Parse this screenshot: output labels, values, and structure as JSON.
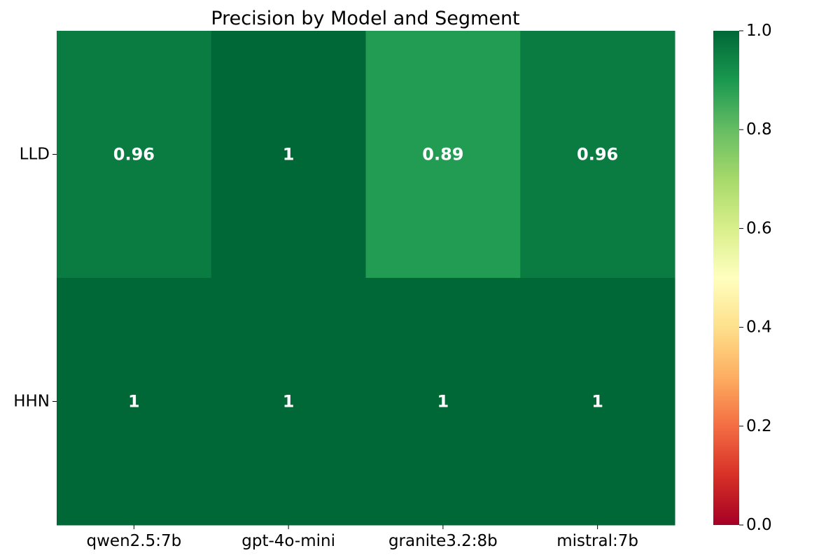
{
  "chart_data": {
    "type": "heatmap",
    "title": "Precision by Model and Segment",
    "xlabel": "",
    "ylabel": "",
    "x_categories": [
      "qwen2.5:7b",
      "gpt-4o-mini",
      "granite3.2:8b",
      "mistral:7b"
    ],
    "y_categories": [
      "LLD",
      "HHN"
    ],
    "values": [
      [
        0.96,
        1.0,
        0.89,
        0.96
      ],
      [
        1.0,
        1.0,
        1.0,
        1.0
      ]
    ],
    "cell_labels": [
      [
        "0.96",
        "1",
        "0.89",
        "0.96"
      ],
      [
        "1",
        "1",
        "1",
        "1"
      ]
    ],
    "colormap": "RdYlGn",
    "colorbar": {
      "vmin": 0.0,
      "vmax": 1.0,
      "tick_values": [
        0.0,
        0.2,
        0.4,
        0.6,
        0.8,
        1.0
      ],
      "tick_labels": [
        "0.0",
        "0.2",
        "0.4",
        "0.6",
        "0.8",
        "1.0"
      ]
    },
    "annotation_color": "#ffffff",
    "grid": false,
    "colorbar_position": "right"
  }
}
